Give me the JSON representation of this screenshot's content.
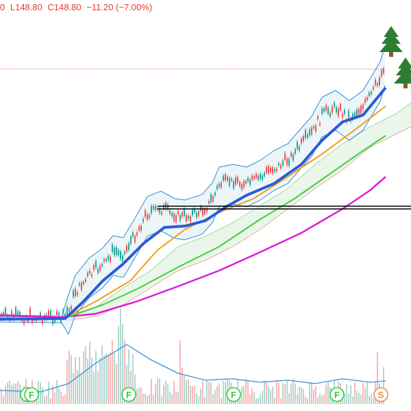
{
  "legend": {
    "partial_open_suffix": "0",
    "low_label": "L148.80",
    "close_label": "C148.80",
    "change_label": "−11.20 (−7.00%)"
  },
  "event_markers": [
    "F",
    "F",
    "F",
    "F",
    "S"
  ],
  "colors": {
    "price_text": "#e53935",
    "bb_line": "#2e88d4",
    "ema_fast": "#2a5bd7",
    "ema_orange": "#f39c12",
    "ema_green": "#40d03a",
    "ema_magenta": "#d81fd8",
    "volume_up": "#9ccfc8",
    "volume_down": "#f4a7a7",
    "volume_ma": "#3b8fd9",
    "marker_green": "#2ecc40",
    "marker_orange": "#f08a4b",
    "tree": "#2e7d32"
  },
  "icons": [
    "pine-tree-icon",
    "pine-tree-icon"
  ],
  "chart_data": {
    "type": "candlestick",
    "title": "",
    "last_close": 148.8,
    "change": -11.2,
    "change_pct": -7.0,
    "overlays": [
      "bollinger-bands",
      "ema-blue",
      "ema-orange",
      "ema-green",
      "ema-magenta",
      "ichimoku-cloud",
      "horizontal-levels"
    ],
    "trend": "strong uptrend from base",
    "grid": false
  }
}
